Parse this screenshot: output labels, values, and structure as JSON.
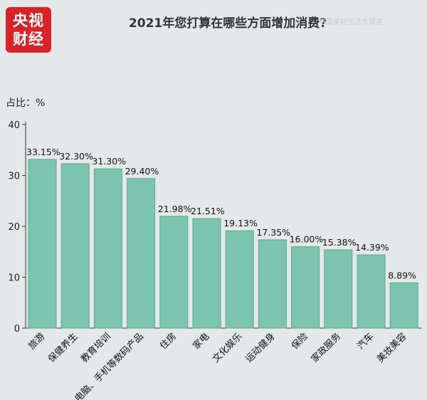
{
  "logo": {
    "line1": "央视",
    "line2": "财经"
  },
  "watermark": "中国美好生活大调查",
  "chart_data": {
    "type": "bar",
    "title": "2021年您打算在哪些方面增加消费?",
    "unit_label": "占比：%",
    "categories": [
      "旅游",
      "保健养生",
      "教育培训",
      "电脑、手机等数码产品",
      "住房",
      "家电",
      "文化娱乐",
      "运动健身",
      "保险",
      "家政服务",
      "汽车",
      "美妆美容"
    ],
    "values": [
      33.15,
      32.3,
      31.3,
      29.4,
      21.98,
      21.51,
      19.13,
      17.35,
      16.0,
      15.38,
      14.39,
      8.89
    ],
    "data_labels": [
      "33.15%",
      "32.30%",
      "31.30%",
      "29.40%",
      "21.98%",
      "21.51%",
      "19.13%",
      "17.35%",
      "16.00%",
      "15.38%",
      "14.39%",
      "8.89%"
    ],
    "yticks": [
      0,
      10,
      20,
      30,
      40
    ],
    "ylim": [
      0,
      40
    ],
    "grid": false,
    "bar_color": "#7dc4b0",
    "bar_edge_color": "#5aa892"
  }
}
